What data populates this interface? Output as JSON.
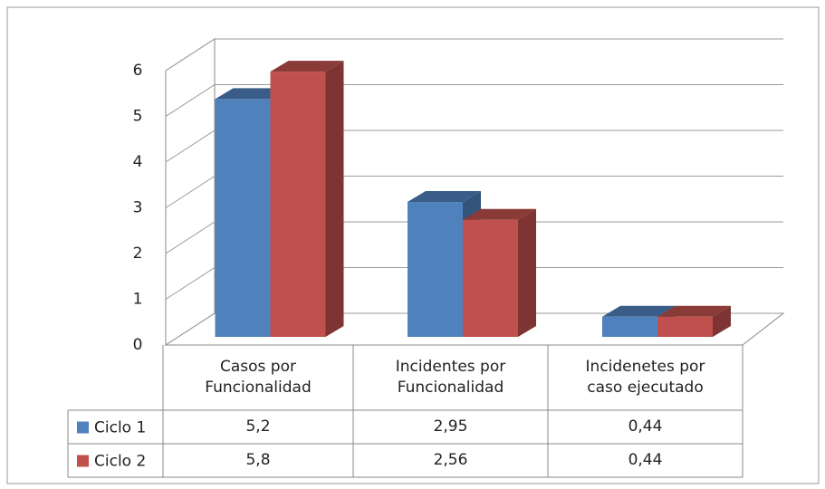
{
  "chart_data": {
    "type": "bar3d",
    "categories": [
      "Casos por Funcionalidad",
      "Incidentes por Funcionalidad",
      "Incidenetes por caso ejecutado"
    ],
    "series": [
      {
        "name": "Ciclo 1",
        "color": "#4f81bd",
        "values": [
          5.2,
          2.95,
          0.44
        ],
        "value_labels": [
          "5,2",
          "2,95",
          "0,44"
        ]
      },
      {
        "name": "Ciclo 2",
        "color": "#c0504d",
        "values": [
          5.8,
          2.56,
          0.44
        ],
        "value_labels": [
          "5,8",
          "2,56",
          "0,44"
        ]
      }
    ],
    "ylim": [
      0,
      6
    ],
    "yticks": [
      0,
      1,
      2,
      3,
      4,
      5,
      6
    ],
    "grid": true,
    "legend": "table"
  }
}
